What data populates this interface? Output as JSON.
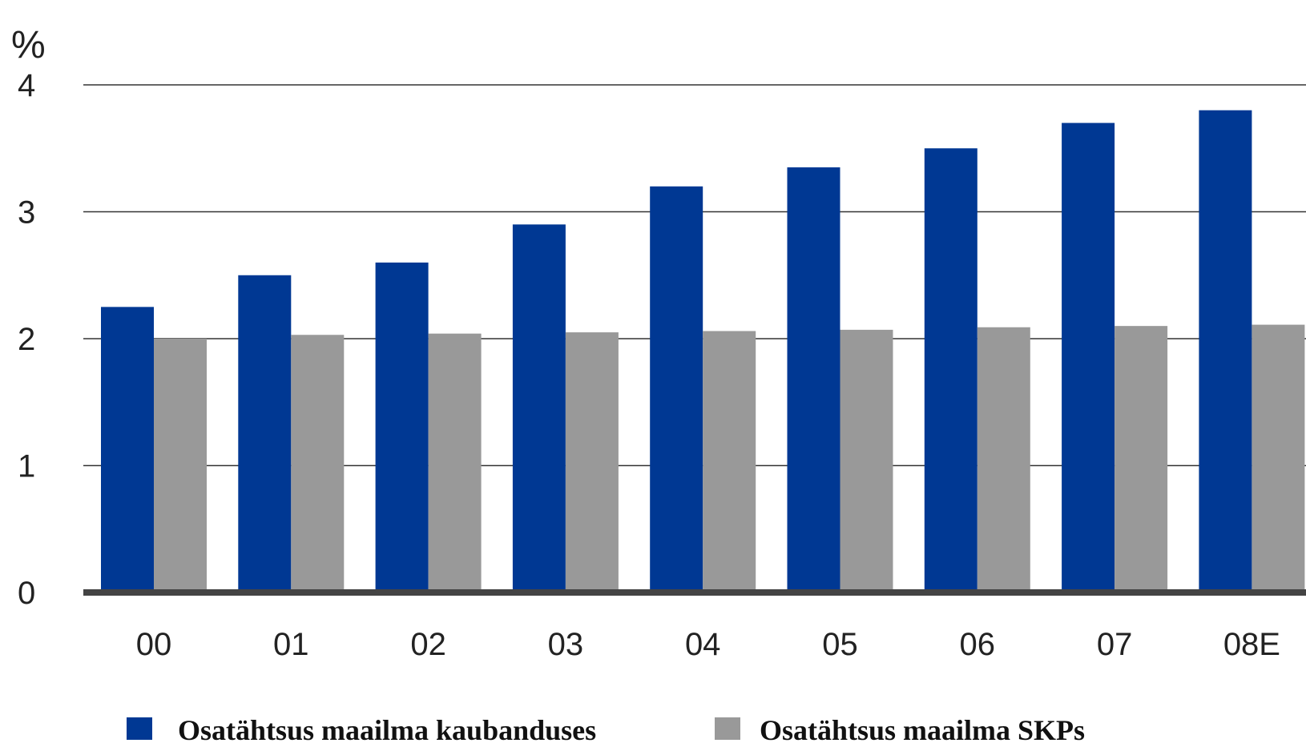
{
  "chart_data": {
    "type": "bar",
    "unit_label": "%",
    "categories": [
      "00",
      "01",
      "02",
      "03",
      "04",
      "05",
      "06",
      "07",
      "08E"
    ],
    "series": [
      {
        "name": "Osatähtsus maailma kaubanduses",
        "color": "#003893",
        "values": [
          2.25,
          2.5,
          2.6,
          2.9,
          3.2,
          3.35,
          3.5,
          3.7,
          3.8
        ]
      },
      {
        "name": "Osatähtsus maailma SKPs",
        "color": "#999999",
        "values": [
          2.0,
          2.03,
          2.04,
          2.05,
          2.06,
          2.07,
          2.09,
          2.1,
          2.11
        ]
      }
    ],
    "yticks": [
      "0",
      "1",
      "2",
      "3",
      "4"
    ],
    "ylim": [
      0,
      4
    ],
    "grid": true,
    "legend_position": "bottom"
  }
}
